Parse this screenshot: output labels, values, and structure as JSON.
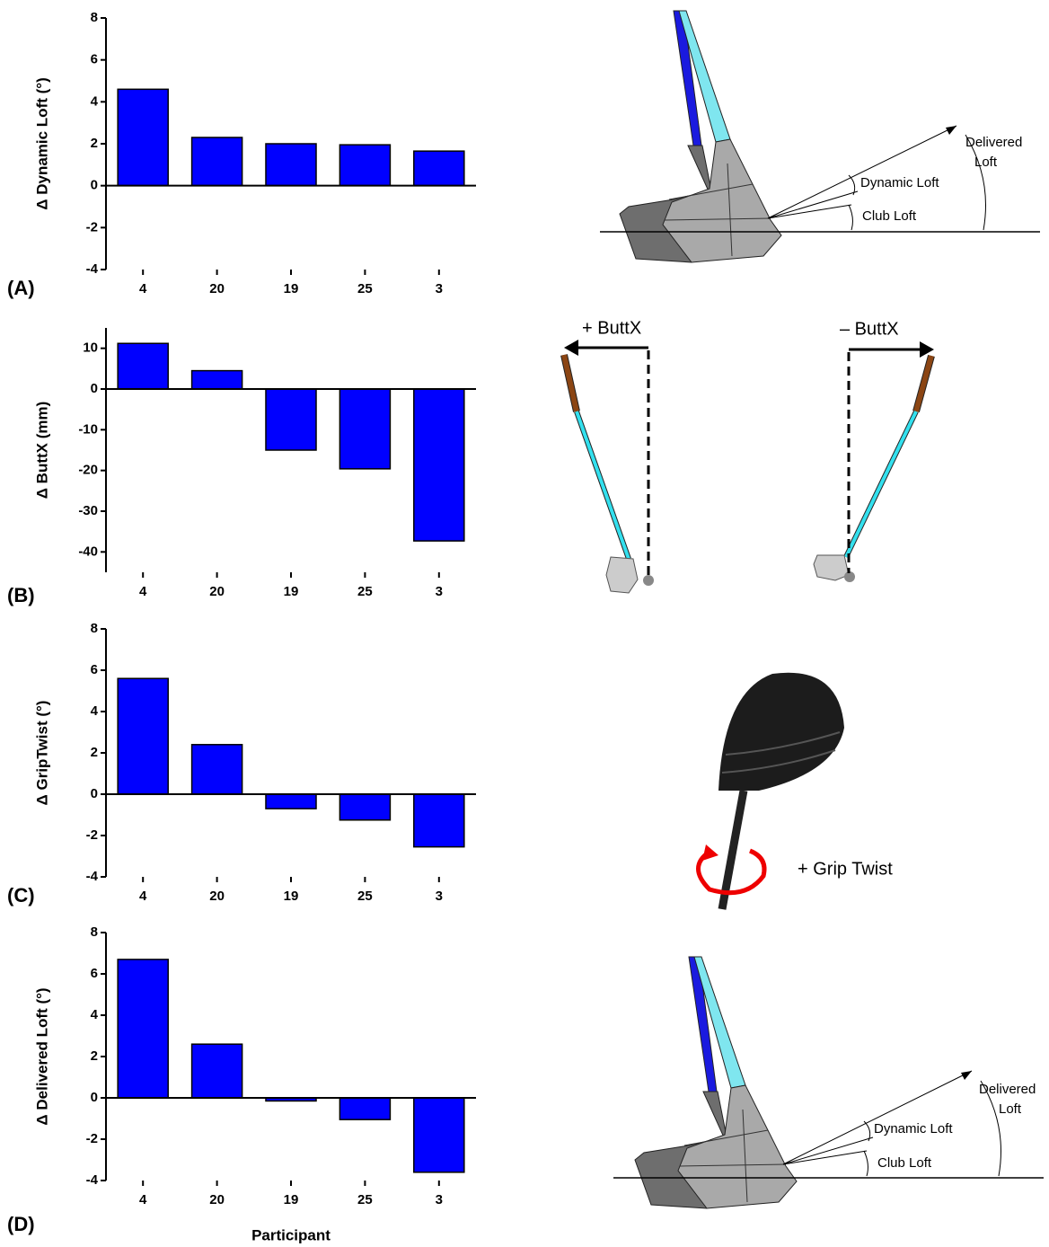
{
  "chart_data": [
    {
      "type": "bar",
      "ylabel": "Δ Dynamic Loft (°)",
      "categories": [
        "4",
        "20",
        "19",
        "25",
        "3"
      ],
      "values": [
        4.6,
        2.3,
        2.0,
        1.95,
        1.65
      ],
      "color": "#0000ff",
      "ylim": [
        -4,
        8
      ],
      "yticks": [
        -4,
        -2,
        0,
        2,
        4,
        6,
        8
      ]
    },
    {
      "type": "bar",
      "ylabel": "Δ ButtX (mm)",
      "categories": [
        "4",
        "20",
        "19",
        "25",
        "3"
      ],
      "values": [
        11.2,
        4.5,
        -15,
        -19.6,
        -37.3
      ],
      "color": "#0000ff",
      "ylim": [
        -45,
        15
      ],
      "yticks": [
        -40,
        -30,
        -20,
        -10,
        0,
        10
      ]
    },
    {
      "type": "bar",
      "ylabel": "Δ GripTwist (°)",
      "categories": [
        "4",
        "20",
        "19",
        "25",
        "3"
      ],
      "values": [
        5.6,
        2.4,
        -0.7,
        -1.25,
        -2.55
      ],
      "color": "#0000ff",
      "ylim": [
        -4,
        8
      ],
      "yticks": [
        -4,
        -2,
        0,
        2,
        4,
        6,
        8
      ]
    },
    {
      "type": "bar",
      "ylabel": "Δ Delivered Loft (°)",
      "xlabel": "Participant",
      "categories": [
        "4",
        "20",
        "19",
        "25",
        "3"
      ],
      "values": [
        6.7,
        2.6,
        -0.15,
        -1.05,
        -3.6
      ],
      "color": "#0000ff",
      "ylim": [
        -4,
        8
      ],
      "yticks": [
        -4,
        -2,
        0,
        2,
        4,
        6,
        8
      ]
    }
  ],
  "panel_labels": [
    "(A)",
    "(B)",
    "(C)",
    "(D)"
  ],
  "diagrams": {
    "loft_top": {
      "delivered": [
        "Delivered",
        "Loft"
      ],
      "dynamic": "Dynamic Loft",
      "club": "Club Loft"
    },
    "butt_plus": "+ ButtX",
    "butt_minus": "– ButtX",
    "grip_twist": "+ Grip Twist",
    "loft_bottom": {
      "delivered": [
        "Delivered",
        "Loft"
      ],
      "dynamic": "Dynamic Loft",
      "club": "Club Loft"
    }
  }
}
